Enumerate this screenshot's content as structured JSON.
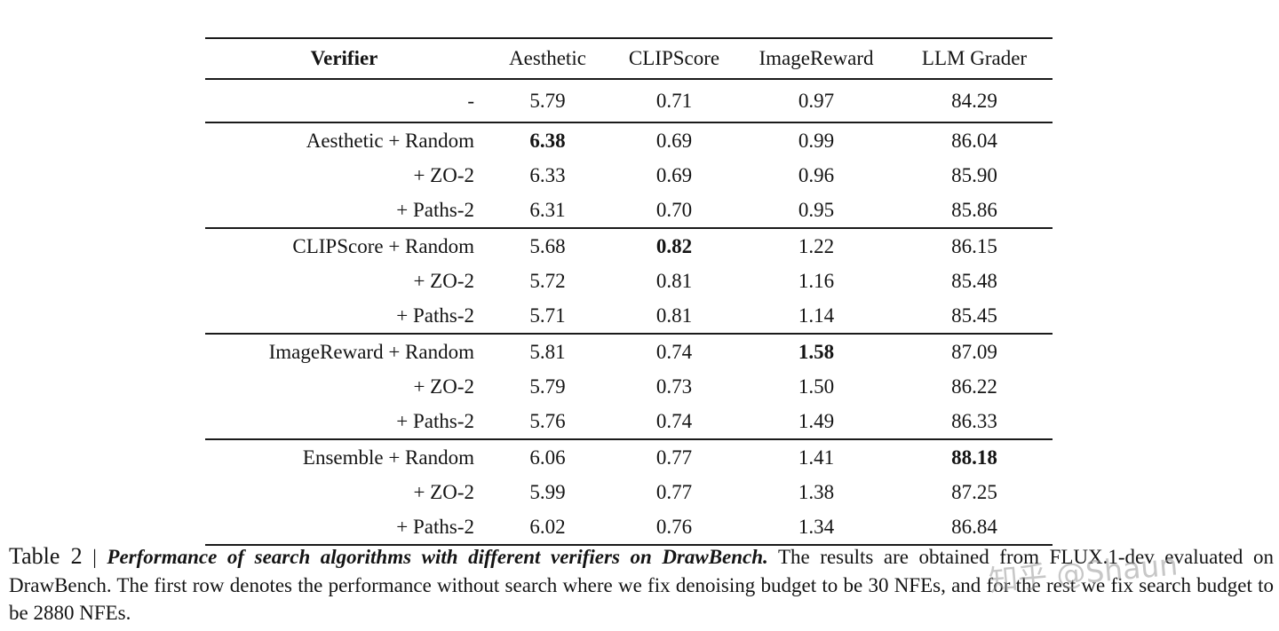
{
  "page": {
    "background": "#ffffff",
    "text_color": "#141414",
    "rule_color": "#1a1a1a"
  },
  "table": {
    "columns": [
      "Verifier",
      "Aesthetic",
      "CLIPScore",
      "ImageReward",
      "LLM Grader"
    ],
    "groups": [
      {
        "name": "no-search",
        "rows": [
          {
            "label": "-",
            "values": [
              "5.79",
              "0.71",
              "0.97",
              "84.29"
            ],
            "bold": []
          }
        ]
      },
      {
        "name": "aesthetic",
        "rows": [
          {
            "label": "Aesthetic + Random",
            "values": [
              "6.38",
              "0.69",
              "0.99",
              "86.04"
            ],
            "bold": [
              0
            ]
          },
          {
            "label": "+ ZO-2",
            "values": [
              "6.33",
              "0.69",
              "0.96",
              "85.90"
            ],
            "bold": []
          },
          {
            "label": "+ Paths-2",
            "values": [
              "6.31",
              "0.70",
              "0.95",
              "85.86"
            ],
            "bold": []
          }
        ]
      },
      {
        "name": "clipscore",
        "rows": [
          {
            "label": "CLIPScore + Random",
            "values": [
              "5.68",
              "0.82",
              "1.22",
              "86.15"
            ],
            "bold": [
              1
            ]
          },
          {
            "label": "+ ZO-2",
            "values": [
              "5.72",
              "0.81",
              "1.16",
              "85.48"
            ],
            "bold": []
          },
          {
            "label": "+ Paths-2",
            "values": [
              "5.71",
              "0.81",
              "1.14",
              "85.45"
            ],
            "bold": []
          }
        ]
      },
      {
        "name": "imagereward",
        "rows": [
          {
            "label": "ImageReward + Random",
            "values": [
              "5.81",
              "0.74",
              "1.58",
              "87.09"
            ],
            "bold": [
              2
            ]
          },
          {
            "label": "+ ZO-2",
            "values": [
              "5.79",
              "0.73",
              "1.50",
              "86.22"
            ],
            "bold": []
          },
          {
            "label": "+ Paths-2",
            "values": [
              "5.76",
              "0.74",
              "1.49",
              "86.33"
            ],
            "bold": []
          }
        ]
      },
      {
        "name": "ensemble",
        "rows": [
          {
            "label": "Ensemble + Random",
            "values": [
              "6.06",
              "0.77",
              "1.41",
              "88.18"
            ],
            "bold": [
              3
            ]
          },
          {
            "label": "+ ZO-2",
            "values": [
              "5.99",
              "0.77",
              "1.38",
              "87.25"
            ],
            "bold": []
          },
          {
            "label": "+ Paths-2",
            "values": [
              "6.02",
              "0.76",
              "1.34",
              "86.84"
            ],
            "bold": []
          }
        ]
      }
    ]
  },
  "caption": {
    "tag": "Table 2",
    "separator": "|",
    "title": "Performance of search algorithms with different verifiers on DrawBench.",
    "body": "The results are obtained from FLUX.1-dev evaluated on DrawBench. The first row denotes the performance without search where we fix denoising budget to be 30 NFEs, and for the rest we fix search budget to be 2880 NFEs."
  },
  "watermark": {
    "text": "知乎 @Shaun"
  }
}
